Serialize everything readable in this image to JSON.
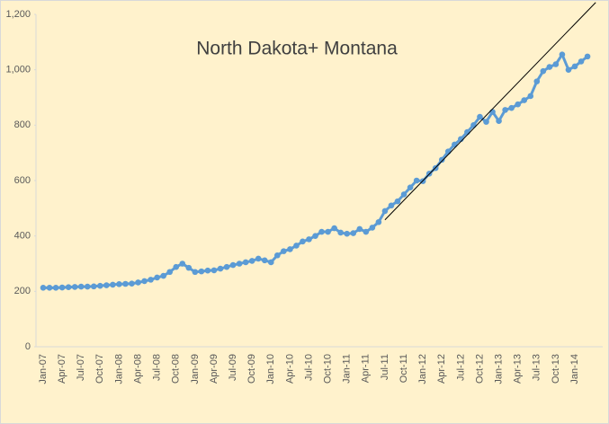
{
  "chart_data": {
    "type": "line",
    "title": "North Dakota+ Montana",
    "categories": [
      "Jan-07",
      null,
      null,
      "Apr-07",
      null,
      null,
      "Jul-07",
      null,
      null,
      "Oct-07",
      null,
      null,
      "Jan-08",
      null,
      null,
      "Apr-08",
      null,
      null,
      "Jul-08",
      null,
      null,
      "Oct-08",
      null,
      null,
      "Jan-09",
      null,
      null,
      "Apr-09",
      null,
      null,
      "Jul-09",
      null,
      null,
      "Oct-09",
      null,
      null,
      "Jan-10",
      null,
      null,
      "Apr-10",
      null,
      null,
      "Jul-10",
      null,
      null,
      "Oct-10",
      null,
      null,
      "Jan-11",
      null,
      null,
      "Apr-11",
      null,
      null,
      "Jul-11",
      null,
      null,
      "Oct-11",
      null,
      null,
      "Jan-12",
      null,
      null,
      "Apr-12",
      null,
      null,
      "Jul-12",
      null,
      null,
      "Oct-12",
      null,
      null,
      "Jan-13",
      null,
      null,
      "Apr-13",
      null,
      null,
      "Jul-13",
      null,
      null,
      "Oct-13",
      null,
      null,
      "Jan-14",
      null,
      null
    ],
    "series": [
      {
        "color": "#5b9bd5",
        "values": [
          213,
          213,
          213,
          214,
          215,
          216,
          217,
          217,
          218,
          220,
          222,
          224,
          226,
          227,
          228,
          232,
          237,
          242,
          250,
          256,
          270,
          288,
          300,
          285,
          270,
          272,
          275,
          276,
          282,
          288,
          295,
          300,
          305,
          310,
          318,
          312,
          305,
          330,
          345,
          352,
          365,
          380,
          388,
          400,
          415,
          415,
          428,
          412,
          408,
          410,
          425,
          415,
          430,
          450,
          490,
          510,
          525,
          550,
          575,
          600,
          598,
          625,
          645,
          675,
          705,
          730,
          750,
          775,
          800,
          830,
          812,
          848,
          815,
          855,
          862,
          875,
          890,
          905,
          958,
          995,
          1010,
          1020,
          1055,
          1000,
          1012,
          1030,
          1048
        ]
      }
    ],
    "trendline": {
      "color": "#000000",
      "x": [
        54,
        87.3
      ],
      "values": [
        458,
        1243
      ]
    },
    "ylim": [
      0,
      1200
    ],
    "yticks": [
      0,
      200,
      400,
      600,
      800,
      {
        "value": 1000,
        "label": "1,000"
      },
      {
        "value": 1200,
        "label": "1,200"
      }
    ],
    "grid": false
  }
}
